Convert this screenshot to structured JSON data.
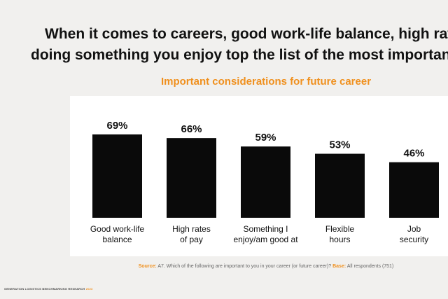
{
  "headline": {
    "line1": "When it comes to careers, good work-life balance, high rates of pa",
    "line2": "doing something you enjoy top the list of the most important consid"
  },
  "chart_data": {
    "type": "bar",
    "title": "Important considerations for future career",
    "categories": [
      [
        "Good work-life",
        "balance"
      ],
      [
        "High rates",
        "of pay"
      ],
      [
        "Something I",
        "enjoy/am good at"
      ],
      [
        "Flexible",
        "hours"
      ],
      [
        "Job",
        "security"
      ]
    ],
    "values": [
      69,
      66,
      59,
      53,
      46
    ],
    "data_labels": [
      "69%",
      "66%",
      "59%",
      "53%",
      "46%"
    ],
    "ylim": [
      0,
      100
    ],
    "xlabel": "",
    "ylabel": "",
    "grid": false,
    "bar_color": "#0a0a0a"
  },
  "source": {
    "label": "Source:",
    "text": " A7. Which of the following are important to you in your career (or future career)? ",
    "base_label": "Base:",
    "base_text": " All respondents (751)"
  },
  "footer": {
    "text": "GENERATION LOGISTICS BENCHMARKING RESEARCH ",
    "year": "2023"
  },
  "colors": {
    "accent": "#f0901e",
    "background": "#f1f0ee"
  }
}
